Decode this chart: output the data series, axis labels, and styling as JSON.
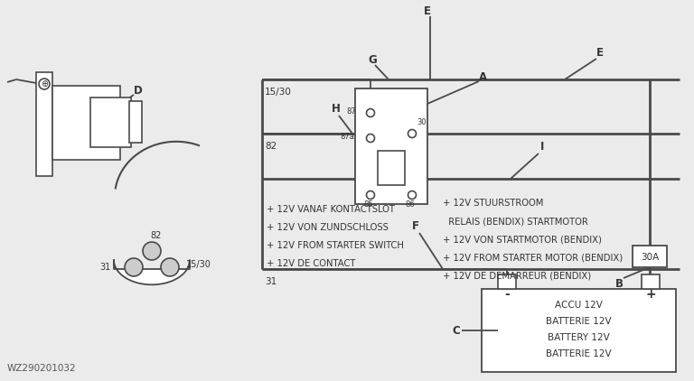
{
  "bg_color": "#ebebeb",
  "line_color": "#4a4a4a",
  "text_color": "#333333",
  "watermark": "WZ290201032",
  "left_text_lines": [
    "+ 12V VANAF KONTACTSLOT",
    "+ 12V VON ZUNDSCHLOSS",
    "+ 12V FROM STARTER SWITCH",
    "+ 12V DE CONTACT"
  ],
  "right_text_lines": [
    "+ 12V STUURSTROOM",
    "  RELAIS (BENDIX) STARTMOTOR",
    "+ 12V VON STARTMOTOR (BENDIX)",
    "+ 12V FROM STARTER MOTOR (BENDIX)",
    "+ 12V DE DEMARREUR (BENDIX)"
  ],
  "battery_text": [
    "ACCU 12V",
    "BATTERIE 12V",
    "BATTERY 12V",
    "BATTERIE 12V"
  ]
}
